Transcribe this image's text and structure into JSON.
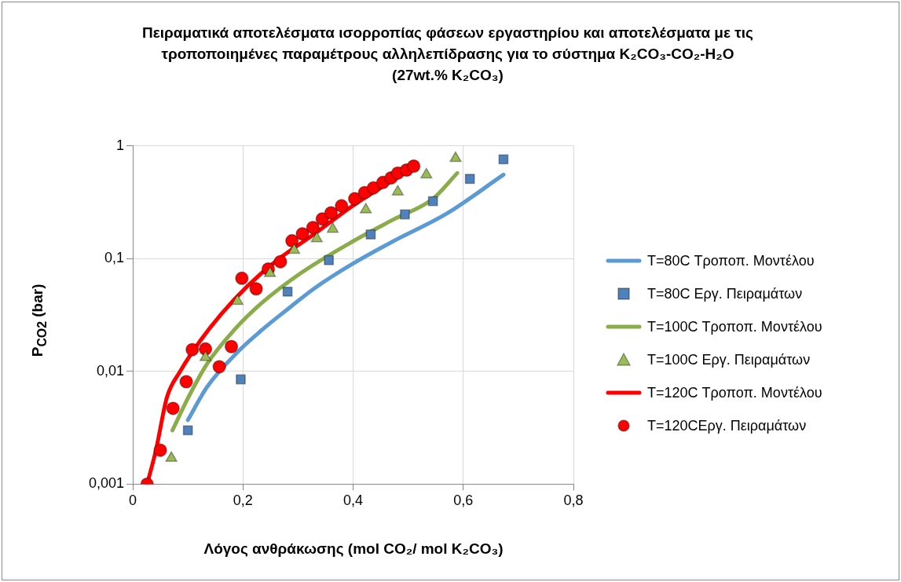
{
  "chart_data": {
    "type": "scatter",
    "title": "Πειραματικά αποτελέσματα ισορροπίας φάσεων εργαστηρίου και αποτελέσματα με τις τροποποιημένες παραμέτρους αλληλεπίδρασης για το σύστημα K₂CO₃-CO₂-H₂O",
    "subtitle": "(27wt.% K₂CO₃)",
    "xlabel": "Λόγος ανθράκωσης (mol CO₂/ mol K₂CO₃)",
    "ylabel": "P$_{CO2}$ (bar)",
    "log": "y",
    "grid": true,
    "legend": "right",
    "xlim": [
      0,
      0.8
    ],
    "xticks": [
      0,
      {
        "value": 0.2,
        "label": "0,2"
      },
      {
        "value": 0.4,
        "label": "0,4"
      },
      {
        "value": 0.6,
        "label": "0,6"
      },
      {
        "value": 0.8,
        "label": "0,8"
      }
    ],
    "ylim": [
      0.001,
      1
    ],
    "yticks": [
      {
        "value": 0.001,
        "label": "0,001"
      },
      {
        "value": 0.01,
        "label": "0,01"
      },
      {
        "value": 0.1,
        "label": "0,1"
      },
      1
    ],
    "series": [
      {
        "name": "T=80C Τροποπ. Μοντέλου",
        "type": "line",
        "marker": "none",
        "color": "#5b9bd5",
        "x": [
          0.1,
          0.135,
          0.193,
          0.233,
          0.281,
          0.33,
          0.399,
          0.472,
          0.57,
          0.673
        ],
        "values": [
          0.0037,
          0.0073,
          0.0153,
          0.023,
          0.0356,
          0.0547,
          0.09,
          0.142,
          0.251,
          0.556
        ]
      },
      {
        "name": "T=80C Εργ. Πειραμάτων",
        "type": "scatter",
        "marker": "square",
        "color": "#4f81bd",
        "x": [
          0.1,
          0.196,
          0.281,
          0.356,
          0.432,
          0.494,
          0.545,
          0.612,
          0.673
        ],
        "values": [
          0.003,
          0.0085,
          0.051,
          0.097,
          0.164,
          0.247,
          0.324,
          0.51,
          0.76
        ]
      },
      {
        "name": "T=100C Τροποπ. Μοντέλου",
        "type": "line",
        "marker": "none",
        "color": "#8aac4a",
        "x": [
          0.072,
          0.101,
          0.135,
          0.183,
          0.233,
          0.306,
          0.399,
          0.472,
          0.545,
          0.589
        ],
        "values": [
          0.003,
          0.0059,
          0.0117,
          0.023,
          0.04,
          0.075,
          0.142,
          0.221,
          0.34,
          0.574
        ]
      },
      {
        "name": "T=100C Εργ. Πειραμάτων",
        "type": "scatter",
        "marker": "triangle",
        "color": "#9bbb59",
        "x": [
          0.07,
          0.132,
          0.19,
          0.249,
          0.293,
          0.334,
          0.363,
          0.423,
          0.481,
          0.533,
          0.586
        ],
        "values": [
          0.0017,
          0.0133,
          0.042,
          0.074,
          0.119,
          0.151,
          0.183,
          0.272,
          0.392,
          0.556,
          0.776
        ]
      },
      {
        "name": "T=120C Τροποπ. Μοντέλου",
        "type": "line",
        "marker": "none",
        "color": "#ff0000",
        "x": [
          0.026,
          0.042,
          0.062,
          0.086,
          0.12,
          0.16,
          0.208,
          0.262,
          0.33,
          0.399,
          0.511
        ],
        "values": [
          0.001,
          0.002,
          0.0059,
          0.01,
          0.018,
          0.032,
          0.057,
          0.097,
          0.166,
          0.294,
          0.651
        ]
      },
      {
        "name": "T=120CΕργ. Πειραμάτων",
        "type": "scatter",
        "marker": "circle",
        "color": "#ff0000",
        "x": [
          0.026,
          0.05,
          0.073,
          0.097,
          0.108,
          0.132,
          0.157,
          0.179,
          0.198,
          0.224,
          0.246,
          0.268,
          0.289,
          0.308,
          0.327,
          0.344,
          0.36,
          0.379,
          0.403,
          0.421,
          0.437,
          0.454,
          0.469,
          0.481,
          0.497,
          0.51
        ],
        "values": [
          0.001,
          0.002,
          0.0047,
          0.0081,
          0.0156,
          0.0158,
          0.011,
          0.0166,
          0.067,
          0.054,
          0.081,
          0.094,
          0.144,
          0.166,
          0.189,
          0.225,
          0.255,
          0.294,
          0.34,
          0.386,
          0.425,
          0.474,
          0.521,
          0.574,
          0.611,
          0.662
        ]
      }
    ]
  }
}
